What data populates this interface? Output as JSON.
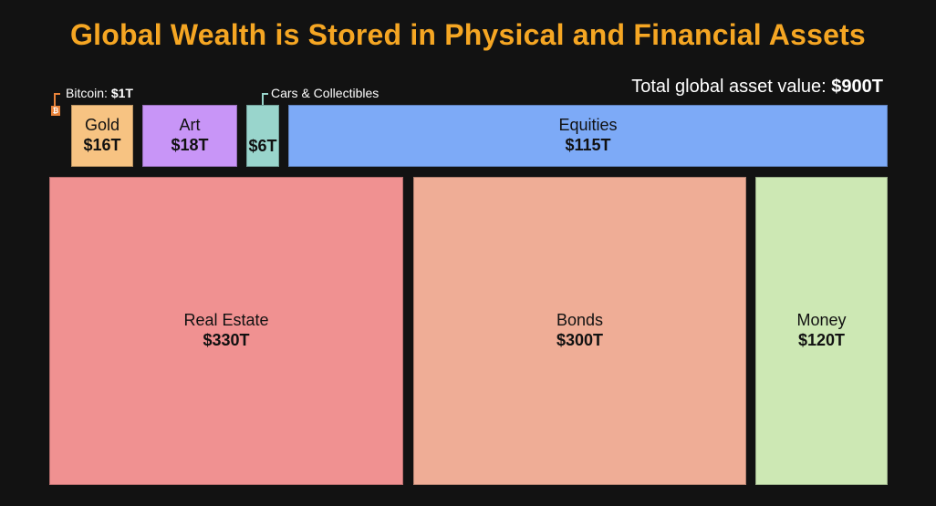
{
  "title": "Global Wealth is Stored in Physical and Financial Assets",
  "total_label": "Total global asset value:",
  "total_value": "$900T",
  "colors": {
    "title": "#f5a623",
    "bitcoin": "#e8833a"
  },
  "chart_data": {
    "type": "treemap",
    "unit": "trillion USD",
    "items": [
      {
        "key": "real_estate",
        "label": "Real Estate",
        "value_label": "$330T",
        "value": 330,
        "color": "#f09191"
      },
      {
        "key": "bonds",
        "label": "Bonds",
        "value_label": "$300T",
        "value": 300,
        "color": "#efad96"
      },
      {
        "key": "money",
        "label": "Money",
        "value_label": "$120T",
        "value": 120,
        "color": "#cde8b4"
      },
      {
        "key": "equities",
        "label": "Equities",
        "value_label": "$115T",
        "value": 115,
        "color": "#7daaf7"
      },
      {
        "key": "art",
        "label": "Art",
        "value_label": "$18T",
        "value": 18,
        "color": "#c895f7"
      },
      {
        "key": "gold",
        "label": "Gold",
        "value_label": "$16T",
        "value": 16,
        "color": "#f7c382"
      },
      {
        "key": "cars",
        "label": "Cars & Collectibles",
        "value_label": "$6T",
        "value": 6,
        "color": "#99d5cc"
      },
      {
        "key": "bitcoin",
        "label": "Bitcoin",
        "value_label": "$1T",
        "value": 1,
        "color": "#e8833a"
      }
    ]
  },
  "callouts": {
    "bitcoin": {
      "name": "Bitcoin:",
      "value": "$1T"
    },
    "cars": "Cars & Collectibles"
  }
}
